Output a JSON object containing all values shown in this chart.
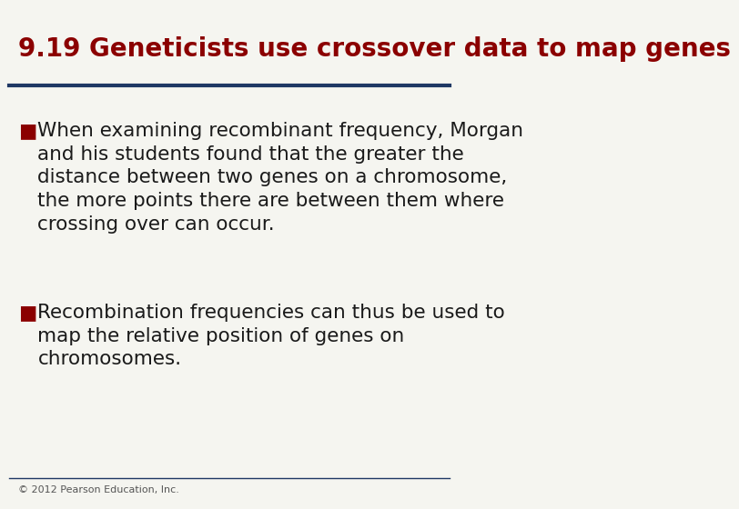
{
  "title": "9.19 Geneticists use crossover data to map genes",
  "title_color": "#8B0000",
  "title_fontsize": 20,
  "title_bold": true,
  "separator_color": "#1F3864",
  "separator_thickness": 3,
  "bullet_color": "#8B0000",
  "bullet_char": "■",
  "body_color": "#1a1a1a",
  "body_fontsize": 15.5,
  "background_color": "#f5f5f0",
  "footer_text": "© 2012 Pearson Education, Inc.",
  "footer_fontsize": 8,
  "footer_color": "#555555",
  "bullet1": "When examining recombinant frequency, Morgan\nand his students found that the greater the\ndistance between two genes on a chromosome,\nthe more points there are between them where\ncrossing over can occur.",
  "bullet2": "Recombination frequencies can thus be used to\nmap the relative position of genes on\nchromosomes."
}
